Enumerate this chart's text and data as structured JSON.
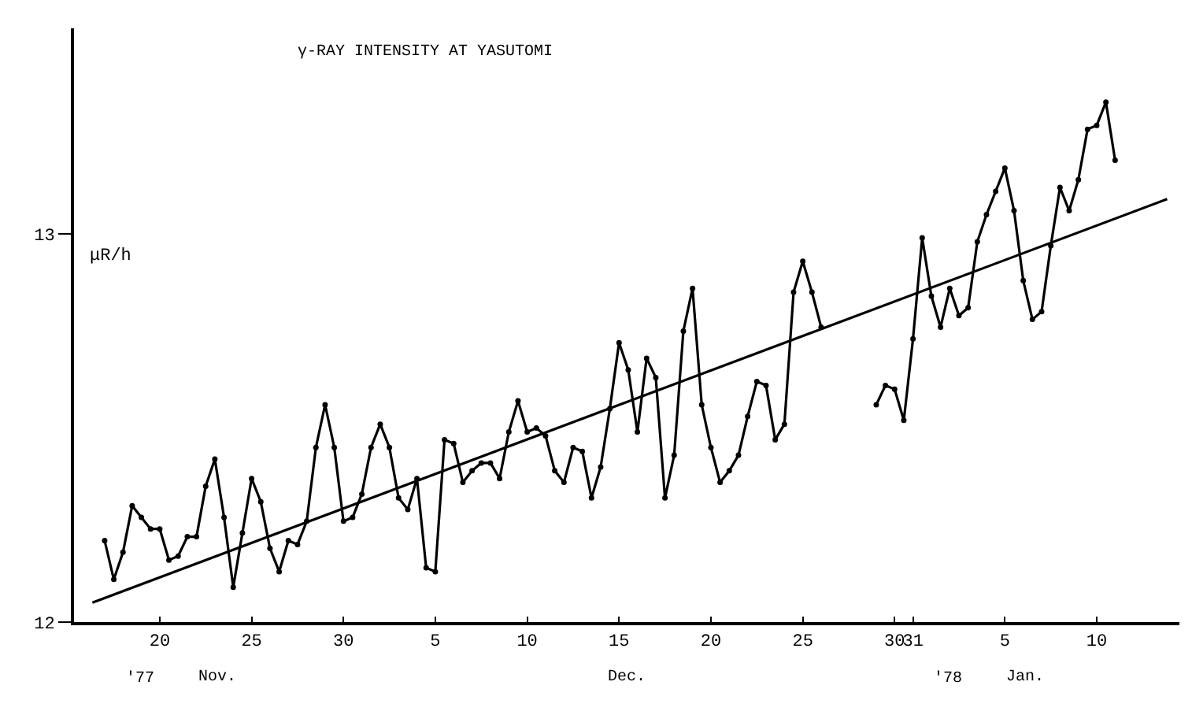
{
  "chart_data": {
    "type": "line",
    "title": "γ-RAY INTENSITY AT YASUTOMI",
    "ylabel": "μR/h",
    "annotations": [
      "'77",
      "Nov.",
      "Dec.",
      "'78",
      "Jan."
    ],
    "xlim": [
      "1977-11-15T08:00",
      "1978-01-14T12:00"
    ],
    "xticks": [
      {
        "value": "1977-11-20",
        "label": "20"
      },
      {
        "value": "1977-11-25",
        "label": "25"
      },
      {
        "value": "1977-11-30",
        "label": "30"
      },
      {
        "value": "1977-12-05",
        "label": "5"
      },
      {
        "value": "1977-12-10",
        "label": "10"
      },
      {
        "value": "1977-12-15",
        "label": "15"
      },
      {
        "value": "1977-12-20",
        "label": "20"
      },
      {
        "value": "1977-12-25",
        "label": "25"
      },
      {
        "value": "1977-12-30",
        "label": "30"
      },
      {
        "value": "1977-12-31",
        "label": "31"
      },
      {
        "value": "1978-01-05",
        "label": "5"
      },
      {
        "value": "1978-01-10",
        "label": "10"
      }
    ],
    "ylim": [
      12,
      13.53
    ],
    "yticks": [
      12,
      13
    ],
    "marker": "circle",
    "line_style": "solid",
    "series": [
      {
        "color": "#000000",
        "x": [
          "1977-11-17T00:00",
          "1977-11-17T12:00",
          "1977-11-18T00:00",
          "1977-11-18T12:00",
          "1977-11-19T00:00",
          "1977-11-19T12:00",
          "1977-11-20T00:00",
          "1977-11-20T12:00",
          "1977-11-21T00:00",
          "1977-11-21T12:00",
          "1977-11-22T00:00",
          "1977-11-22T12:00",
          "1977-11-23T00:00",
          "1977-11-23T12:00",
          "1977-11-24T00:00",
          "1977-11-24T12:00",
          "1977-11-25T00:00",
          "1977-11-25T12:00",
          "1977-11-26T00:00",
          "1977-11-26T12:00",
          "1977-11-27T00:00",
          "1977-11-27T12:00",
          "1977-11-28T00:00",
          "1977-11-28T12:00",
          "1977-11-29T00:00",
          "1977-11-29T12:00",
          "1977-11-30T00:00",
          "1977-11-30T12:00",
          "1977-12-01T00:00",
          "1977-12-01T12:00",
          "1977-12-02T00:00",
          "1977-12-02T12:00",
          "1977-12-03T00:00",
          "1977-12-03T12:00",
          "1977-12-04T00:00",
          "1977-12-04T12:00",
          "1977-12-05T00:00",
          "1977-12-05T12:00",
          "1977-12-06T00:00",
          "1977-12-06T12:00",
          "1977-12-07T00:00",
          "1977-12-07T12:00",
          "1977-12-08T00:00",
          "1977-12-08T12:00",
          "1977-12-09T00:00",
          "1977-12-09T12:00",
          "1977-12-10T00:00",
          "1977-12-10T12:00",
          "1977-12-11T00:00",
          "1977-12-11T12:00",
          "1977-12-12T00:00",
          "1977-12-12T12:00",
          "1977-12-13T00:00",
          "1977-12-13T12:00",
          "1977-12-14T00:00",
          "1977-12-14T12:00",
          "1977-12-15T00:00",
          "1977-12-15T12:00",
          "1977-12-16T00:00",
          "1977-12-16T12:00",
          "1977-12-17T00:00",
          "1977-12-17T12:00",
          "1977-12-18T00:00",
          "1977-12-18T12:00",
          "1977-12-19T00:00",
          "1977-12-19T12:00",
          "1977-12-20T00:00",
          "1977-12-20T12:00",
          "1977-12-21T00:00",
          "1977-12-21T12:00",
          "1977-12-22T00:00",
          "1977-12-22T12:00",
          "1977-12-23T00:00",
          "1977-12-23T12:00",
          "1977-12-24T00:00",
          "1977-12-24T12:00",
          "1977-12-25T00:00",
          "1977-12-25T12:00",
          "1977-12-26T00:00"
        ],
        "values": [
          12.21,
          12.11,
          12.18,
          12.3,
          12.27,
          12.24,
          12.24,
          12.16,
          12.17,
          12.22,
          12.22,
          12.35,
          12.42,
          12.27,
          12.09,
          12.23,
          12.37,
          12.31,
          12.19,
          12.13,
          12.21,
          12.2,
          12.26,
          12.45,
          12.56,
          12.45,
          12.26,
          12.27,
          12.33,
          12.45,
          12.51,
          12.45,
          12.32,
          12.29,
          12.37,
          12.14,
          12.13,
          12.47,
          12.46,
          12.36,
          12.39,
          12.41,
          12.41,
          12.37,
          12.49,
          12.57,
          12.49,
          12.5,
          12.48,
          12.39,
          12.36,
          12.45,
          12.44,
          12.32,
          12.4,
          12.55,
          12.72,
          12.65,
          12.49,
          12.68,
          12.63,
          12.32,
          12.43,
          12.75,
          12.86,
          12.56,
          12.45,
          12.36,
          12.39,
          12.43,
          12.53,
          12.62,
          12.61,
          12.47,
          12.51,
          12.85,
          12.93,
          12.85,
          12.76
        ]
      },
      {
        "color": "#000000",
        "x": [
          "1977-12-29T00:00",
          "1977-12-29T12:00",
          "1977-12-30T00:00",
          "1977-12-30T12:00",
          "1977-12-31T00:00",
          "1977-12-31T12:00",
          "1978-01-01T00:00",
          "1978-01-01T12:00",
          "1978-01-02T00:00",
          "1978-01-02T12:00",
          "1978-01-03T00:00",
          "1978-01-03T12:00",
          "1978-01-04T00:00",
          "1978-01-04T12:00",
          "1978-01-05T00:00",
          "1978-01-05T12:00",
          "1978-01-06T00:00",
          "1978-01-06T12:00",
          "1978-01-07T00:00",
          "1978-01-07T12:00",
          "1978-01-08T00:00",
          "1978-01-08T12:00",
          "1978-01-09T00:00",
          "1978-01-09T12:00",
          "1978-01-10T00:00",
          "1978-01-10T12:00",
          "1978-01-11T00:00"
        ],
        "values": [
          12.56,
          12.61,
          12.6,
          12.52,
          12.73,
          12.99,
          12.84,
          12.76,
          12.86,
          12.79,
          12.81,
          12.98,
          13.05,
          13.11,
          13.17,
          13.06,
          12.88,
          12.78,
          12.8,
          12.97,
          13.12,
          13.06,
          13.14,
          13.27,
          13.28,
          13.34,
          13.19
        ]
      },
      {
        "color": "#000000",
        "marker": "none",
        "x": [
          "1977-11-16T08:00",
          "1978-01-13T20:00"
        ],
        "values": [
          12.05,
          13.09
        ]
      }
    ]
  }
}
